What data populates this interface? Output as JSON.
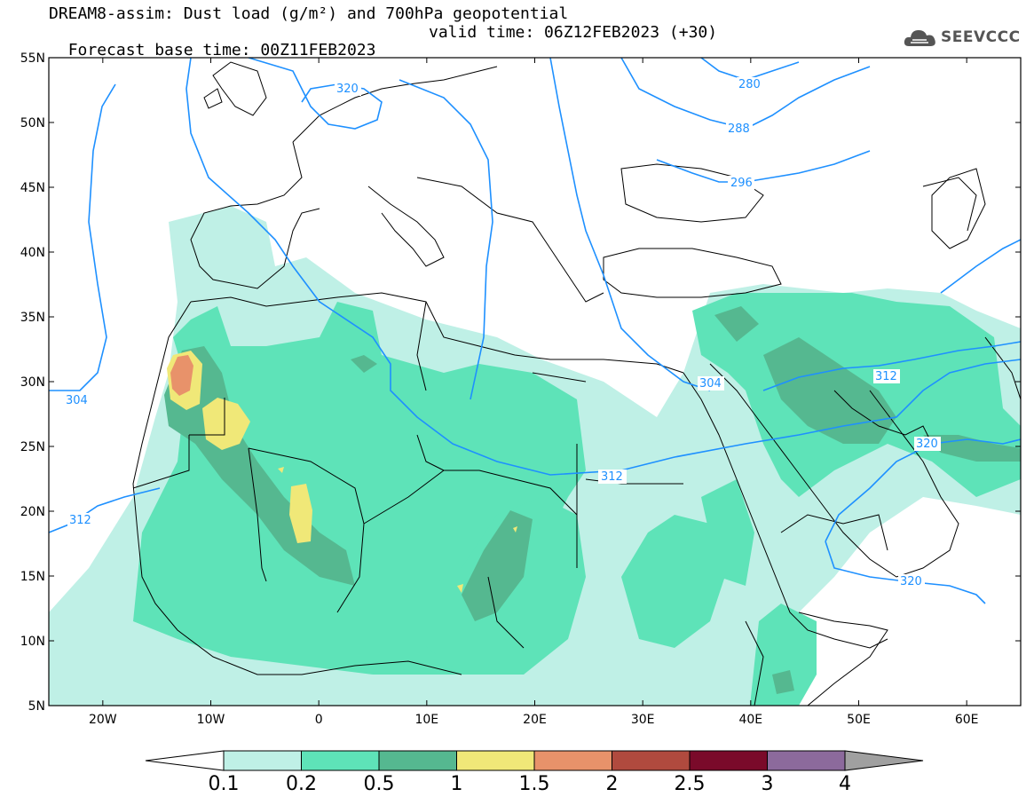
{
  "header": {
    "title_line1": "DREAM8-assim: Dust load (g/m²) and 700hPa geopotential",
    "title_line2_left": "Forecast base time: 00Z11FEB2023",
    "title_line2_right": "valid time: 06Z12FEB2023 (+30)",
    "logo_text": "SEEVCCC"
  },
  "map": {
    "lon_range": [
      -25,
      65
    ],
    "lat_range": [
      5,
      55
    ],
    "lat_ticks": [
      {
        "v": 55,
        "t": "55N"
      },
      {
        "v": 50,
        "t": "50N"
      },
      {
        "v": 45,
        "t": "45N"
      },
      {
        "v": 40,
        "t": "40N"
      },
      {
        "v": 35,
        "t": "35N"
      },
      {
        "v": 30,
        "t": "30N"
      },
      {
        "v": 25,
        "t": "25N"
      },
      {
        "v": 20,
        "t": "20N"
      },
      {
        "v": 15,
        "t": "15N"
      },
      {
        "v": 10,
        "t": "10N"
      },
      {
        "v": 5,
        "t": "5N"
      }
    ],
    "lon_ticks": [
      {
        "v": -20,
        "t": "20W"
      },
      {
        "v": -10,
        "t": "10W"
      },
      {
        "v": 0,
        "t": "0"
      },
      {
        "v": 10,
        "t": "10E"
      },
      {
        "v": 20,
        "t": "20E"
      },
      {
        "v": 30,
        "t": "30E"
      },
      {
        "v": 40,
        "t": "40E"
      },
      {
        "v": 50,
        "t": "50E"
      },
      {
        "v": 60,
        "t": "60E"
      }
    ],
    "contour_color": "#1e90ff",
    "contour_labels": [
      "280",
      "288",
      "296",
      "304",
      "304",
      "312",
      "312",
      "312",
      "320",
      "320",
      "320"
    ]
  },
  "colorbar": {
    "boundaries": [
      "0.1",
      "0.2",
      "0.5",
      "1",
      "1.5",
      "2",
      "2.5",
      "3",
      "4"
    ],
    "colors": [
      "#bff0e6",
      "#5ee3b8",
      "#55b890",
      "#f0e878",
      "#e8926a",
      "#b04a3e",
      "#7a0a2a",
      "#8c6a9c"
    ],
    "under_color": "#ffffff",
    "over_color": "#a0a0a0"
  }
}
